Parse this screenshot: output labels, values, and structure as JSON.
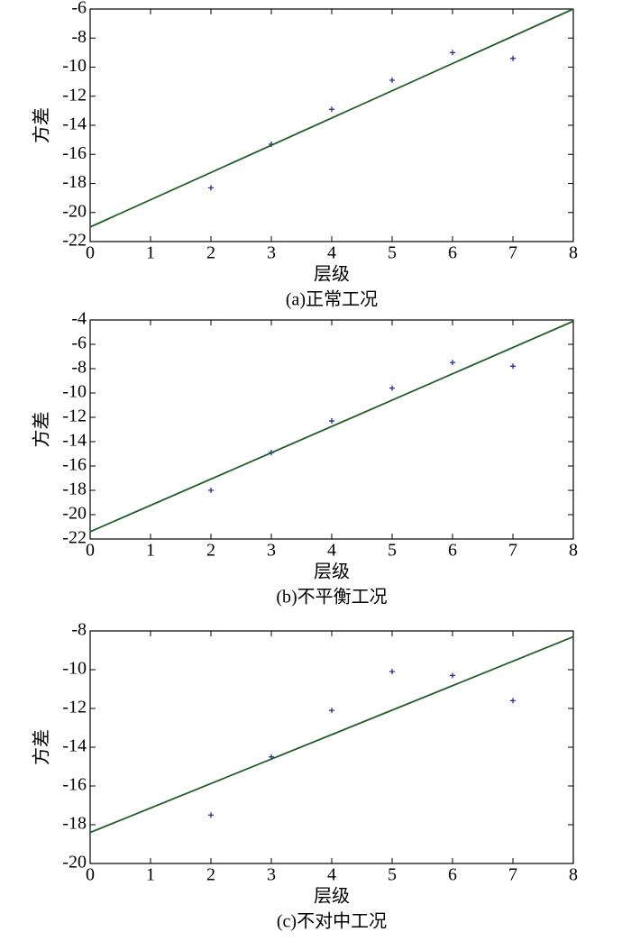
{
  "chart_data": [
    {
      "type": "scatter",
      "xlabel": "层级",
      "ylabel": "方差",
      "caption": "(a)正常工况",
      "xlim": [
        0,
        8
      ],
      "ylim": [
        -22,
        -6
      ],
      "xticks": [
        0,
        1,
        2,
        3,
        4,
        5,
        6,
        7,
        8
      ],
      "yticks": [
        -22,
        -20,
        -18,
        -16,
        -14,
        -12,
        -10,
        -8,
        -6
      ],
      "series": [
        {
          "style": "marker",
          "color": "#2a2a9a",
          "x": [
            2,
            3,
            4,
            5,
            6,
            7
          ],
          "values": [
            -18.3,
            -15.3,
            -12.9,
            -10.9,
            -9.0,
            -9.4
          ]
        },
        {
          "style": "line",
          "color": "#1e5e28",
          "x": [
            0,
            8
          ],
          "values": [
            -21.0,
            -6.0
          ]
        }
      ]
    },
    {
      "type": "scatter",
      "xlabel": "层级",
      "ylabel": "方差",
      "caption": "(b)不平衡工况",
      "xlim": [
        0,
        8
      ],
      "ylim": [
        -22,
        -4
      ],
      "xticks": [
        0,
        1,
        2,
        3,
        4,
        5,
        6,
        7,
        8
      ],
      "yticks": [
        -22,
        -20,
        -18,
        -16,
        -14,
        -12,
        -10,
        -8,
        -6,
        -4
      ],
      "series": [
        {
          "style": "marker",
          "color": "#2a2a9a",
          "x": [
            2,
            3,
            4,
            5,
            6,
            7
          ],
          "values": [
            -18.0,
            -14.9,
            -12.3,
            -9.6,
            -7.5,
            -7.8
          ]
        },
        {
          "style": "line",
          "color": "#1e5e28",
          "x": [
            0,
            8
          ],
          "values": [
            -21.4,
            -4.1
          ]
        }
      ]
    },
    {
      "type": "scatter",
      "xlabel": "层级",
      "ylabel": "方差",
      "caption": "(c)不对中工况",
      "xlim": [
        0,
        8
      ],
      "ylim": [
        -20,
        -8
      ],
      "xticks": [
        0,
        1,
        2,
        3,
        4,
        5,
        6,
        7,
        8
      ],
      "yticks": [
        -20,
        -18,
        -16,
        -14,
        -12,
        -10,
        -8
      ],
      "series": [
        {
          "style": "marker",
          "color": "#2a2a9a",
          "x": [
            2,
            3,
            4,
            5,
            6,
            7
          ],
          "values": [
            -17.5,
            -14.5,
            -12.1,
            -10.1,
            -10.3,
            -11.6
          ]
        },
        {
          "style": "line",
          "color": "#1e5e28",
          "x": [
            0,
            8
          ],
          "values": [
            -18.4,
            -8.3
          ]
        }
      ]
    }
  ]
}
